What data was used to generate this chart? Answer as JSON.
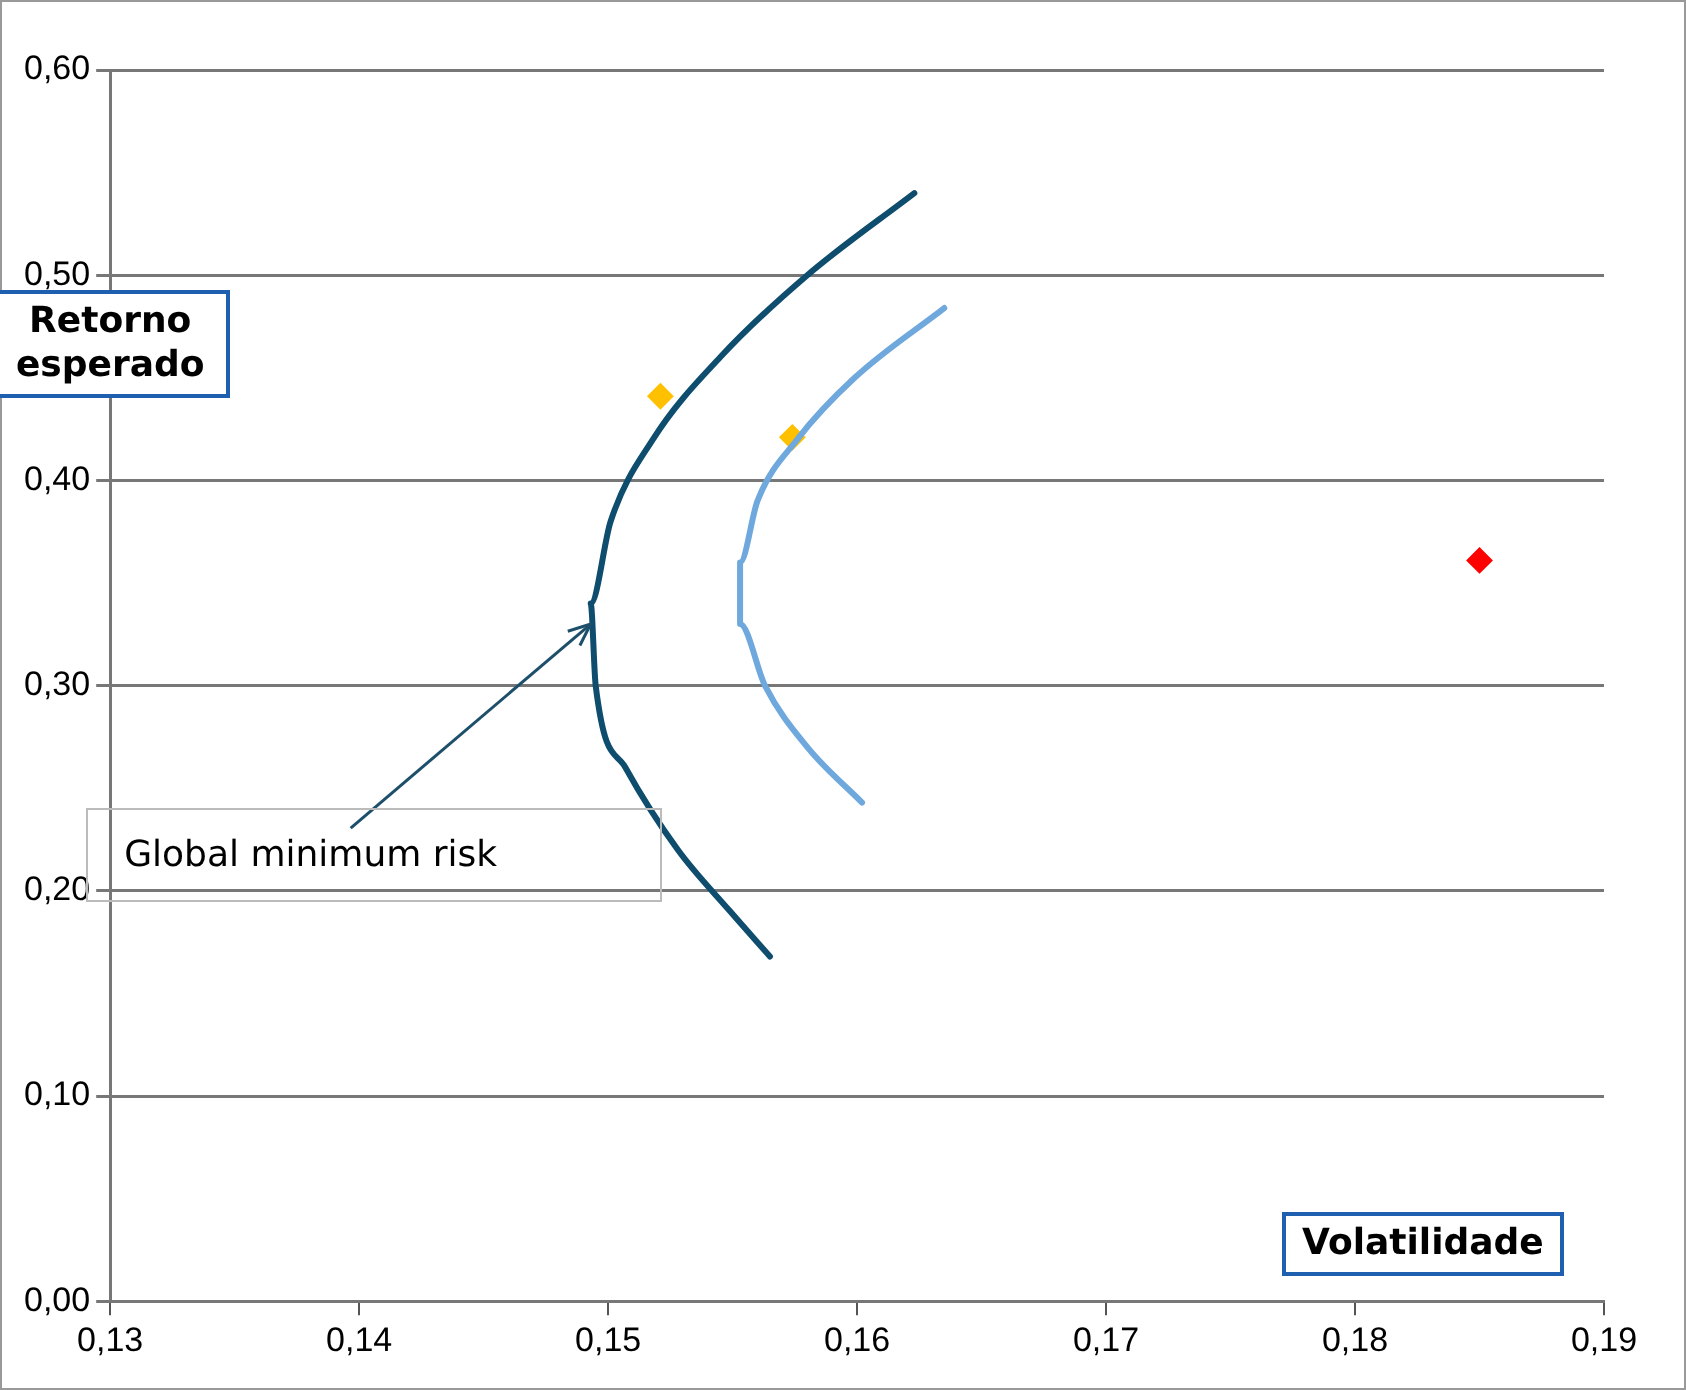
{
  "chart_data": {
    "type": "line",
    "xlabel": "Volatilidade",
    "ylabel": "Retorno esperado",
    "xlim": [
      0.13,
      0.19
    ],
    "ylim": [
      0,
      0.6
    ],
    "xticks": [
      {
        "value": 0.13,
        "label": "0,13"
      },
      {
        "value": 0.14,
        "label": "0,14"
      },
      {
        "value": 0.15,
        "label": "0,15"
      },
      {
        "value": 0.16,
        "label": "0,16"
      },
      {
        "value": 0.17,
        "label": "0,17"
      },
      {
        "value": 0.18,
        "label": "0,18"
      },
      {
        "value": 0.19,
        "label": "0,19"
      }
    ],
    "yticks": [
      {
        "value": 0,
        "label": "0,00"
      },
      {
        "value": 0.1,
        "label": "0,10"
      },
      {
        "value": 0.2,
        "label": "0,20"
      },
      {
        "value": 0.3,
        "label": "0,30"
      },
      {
        "value": 0.4,
        "label": "0,40"
      },
      {
        "value": 0.5,
        "label": "0,50"
      },
      {
        "value": 0.6,
        "label": "0,60"
      }
    ],
    "grid": "y",
    "legend": false,
    "series": [
      {
        "type": "line",
        "marker": "none",
        "color": "#0e4d6e",
        "x": [
          0.1623,
          0.158,
          0.1545,
          0.1518,
          0.1501,
          0.1493,
          0.1495,
          0.1507,
          0.1528,
          0.1549,
          0.1565
        ],
        "values": [
          0.54,
          0.5,
          0.46,
          0.42,
          0.38,
          0.34,
          0.3,
          0.26,
          0.22,
          0.19,
          0.168
        ]
      },
      {
        "type": "line",
        "marker": "none",
        "color": "#6fa8dc",
        "x": [
          0.1635,
          0.1599,
          0.1576,
          0.156,
          0.1553,
          0.1553,
          0.1563,
          0.158,
          0.1602
        ],
        "values": [
          0.484,
          0.45,
          0.42,
          0.39,
          0.36,
          0.33,
          0.3,
          0.27,
          0.243
        ]
      },
      {
        "type": "scatter",
        "marker": "diamond",
        "color": "#ffc000",
        "x": [
          0.1521,
          0.1574
        ],
        "values": [
          0.441,
          0.421
        ]
      },
      {
        "type": "scatter",
        "marker": "diamond",
        "color": "#ff0000",
        "x": [
          0.185
        ],
        "values": [
          0.361
        ]
      }
    ],
    "annotations": [
      {
        "text": "Global minimum risk",
        "x": 0.1493,
        "y": 0.33
      }
    ]
  }
}
